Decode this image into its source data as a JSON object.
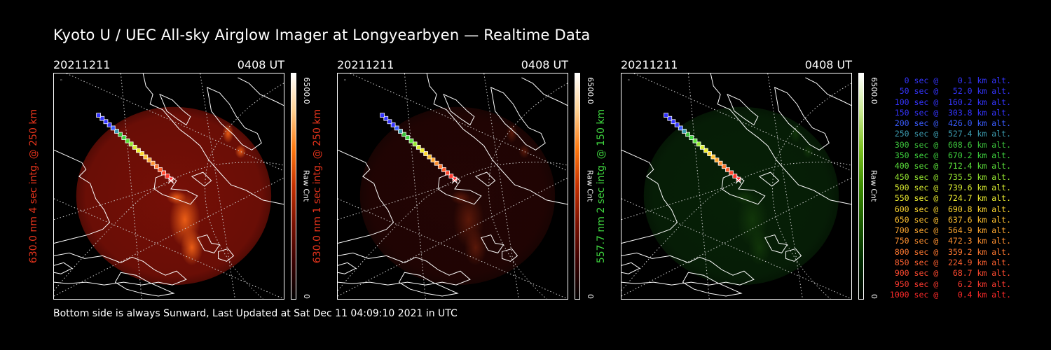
{
  "header": {
    "title": "Kyoto U / UEC All-sky Airglow Imager at Longyearbyen — Realtime Data"
  },
  "footer": {
    "text": "Bottom side is always Sunward, Last Updated at Sat Dec 11 04:09:10 2021 in UTC"
  },
  "panels": [
    {
      "date": "20211211",
      "time": "0408 UT",
      "ylabel": "630.0 nm 4 sec intg. @ 250 km",
      "label_color": "#e8341c",
      "colorbar_max": "6500.0",
      "colorbar_min": "0",
      "colorbar_unit": "Raw Cnt",
      "colormap": [
        "#000000",
        "#3a0000",
        "#7a1000",
        "#c43000",
        "#ff7a10",
        "#ffd090",
        "#ffffff"
      ],
      "glow_color": "#8a1208",
      "glow_opacity": 0.85,
      "aurora_color": "#ff6a18",
      "aurora_opacity": 0.85
    },
    {
      "date": "20211211",
      "time": "0408 UT",
      "ylabel": "630.0 nm 1 sec intg. @ 250 km",
      "label_color": "#e8341c",
      "colorbar_max": "6500.0",
      "colorbar_min": "0",
      "colorbar_unit": "Raw Cnt",
      "colormap": [
        "#000000",
        "#3a0000",
        "#7a1000",
        "#c43000",
        "#ff7a10",
        "#ffd090",
        "#ffffff"
      ],
      "glow_color": "#3a0806",
      "glow_opacity": 0.6,
      "aurora_color": "#a03010",
      "aurora_opacity": 0.45
    },
    {
      "date": "20211211",
      "time": "0408 UT",
      "ylabel": "557.7 nm 2 sec intg. @ 150 km",
      "label_color": "#3ed43e",
      "colorbar_max": "6500.0",
      "colorbar_min": "0",
      "colorbar_unit": "Raw Cnt",
      "colormap": [
        "#000000",
        "#002a00",
        "#1a5a00",
        "#3c8c00",
        "#7cc020",
        "#c8e890",
        "#ffffff"
      ],
      "glow_color": "#0c3a0c",
      "glow_opacity": 0.55,
      "aurora_color": "#2a6a10",
      "aurora_opacity": 0.3
    }
  ],
  "legend": {
    "items": [
      {
        "label": "   0 sec @    0.1 km alt.",
        "color": "#3434ff"
      },
      {
        "label": "  50 sec @   52.0 km alt.",
        "color": "#3434ff"
      },
      {
        "label": " 100 sec @  160.2 km alt.",
        "color": "#3434ff"
      },
      {
        "label": " 150 sec @  303.8 km alt.",
        "color": "#3434ff"
      },
      {
        "label": " 200 sec @  426.0 km alt.",
        "color": "#3a5cff"
      },
      {
        "label": " 250 sec @  527.4 km alt.",
        "color": "#3c9cb0"
      },
      {
        "label": " 300 sec @  608.6 km alt.",
        "color": "#3cc43c"
      },
      {
        "label": " 350 sec @  670.2 km alt.",
        "color": "#3ed43e"
      },
      {
        "label": " 400 sec @  712.4 km alt.",
        "color": "#5ae03a"
      },
      {
        "label": " 450 sec @  735.5 km alt.",
        "color": "#96e830"
      },
      {
        "label": " 500 sec @  739.6 km alt.",
        "color": "#d8ec30"
      },
      {
        "label": " 550 sec @  724.7 km alt.",
        "color": "#f0f030"
      },
      {
        "label": " 600 sec @  690.8 km alt.",
        "color": "#ffd830"
      },
      {
        "label": " 650 sec @  637.6 km alt.",
        "color": "#ffc030"
      },
      {
        "label": " 700 sec @  564.9 km alt.",
        "color": "#ffa830"
      },
      {
        "label": " 750 sec @  472.3 km alt.",
        "color": "#ff9030"
      },
      {
        "label": " 800 sec @  359.2 km alt.",
        "color": "#ff7830"
      },
      {
        "label": " 850 sec @  224.9 km alt.",
        "color": "#ff6030"
      },
      {
        "label": " 900 sec @   68.7 km alt.",
        "color": "#ff4a30"
      },
      {
        "label": " 950 sec @    6.2 km alt.",
        "color": "#ff3a30"
      },
      {
        "label": "1000 sec @    0.4 km alt.",
        "color": "#ff2a2a"
      }
    ]
  }
}
